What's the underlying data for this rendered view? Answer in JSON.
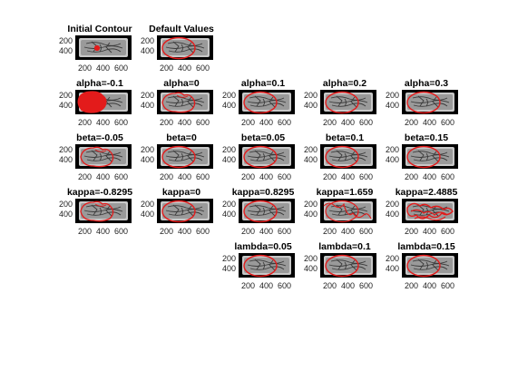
{
  "figure_axis": {
    "yticks": [
      "200",
      "400"
    ],
    "xticks": [
      "200",
      "400",
      "600"
    ],
    "image_background": "#000000",
    "image_foreground": "#c8c8c8",
    "contour_color": "#e31b1b"
  },
  "chart_data": {
    "type": "image-grid",
    "panels": [
      {
        "title": "Initial Contour",
        "row": 0,
        "col": 0,
        "contour": "initial-dot"
      },
      {
        "title": "Default Values",
        "row": 0,
        "col": 1,
        "contour": "ellipse"
      },
      {
        "title": "alpha=-0.1",
        "row": 1,
        "col": 0,
        "contour": "filled-blob"
      },
      {
        "title": "alpha=0",
        "row": 1,
        "col": 1,
        "contour": "wavy"
      },
      {
        "title": "alpha=0.1",
        "row": 1,
        "col": 2,
        "contour": "ellipse"
      },
      {
        "title": "alpha=0.2",
        "row": 1,
        "col": 3,
        "contour": "ellipse"
      },
      {
        "title": "alpha=0.3",
        "row": 1,
        "col": 4,
        "contour": "ellipse"
      },
      {
        "title": "beta=-0.05",
        "row": 2,
        "col": 0,
        "contour": "wavy"
      },
      {
        "title": "beta=0",
        "row": 2,
        "col": 1,
        "contour": "ellipse"
      },
      {
        "title": "beta=0.05",
        "row": 2,
        "col": 2,
        "contour": "ellipse"
      },
      {
        "title": "beta=0.1",
        "row": 2,
        "col": 3,
        "contour": "ellipse"
      },
      {
        "title": "beta=0.15",
        "row": 2,
        "col": 4,
        "contour": "ellipse"
      },
      {
        "title": "kappa=-0.8295",
        "row": 3,
        "col": 0,
        "contour": "wavy"
      },
      {
        "title": "kappa=0",
        "row": 3,
        "col": 1,
        "contour": "ellipse"
      },
      {
        "title": "kappa=0.8295",
        "row": 3,
        "col": 2,
        "contour": "ellipse"
      },
      {
        "title": "kappa=1.659",
        "row": 3,
        "col": 3,
        "contour": "scribble"
      },
      {
        "title": "kappa=2.4885",
        "row": 3,
        "col": 4,
        "contour": "scribble-heavy"
      },
      {
        "title": "lambda=0.05",
        "row": 4,
        "col": 2,
        "contour": "ellipse"
      },
      {
        "title": "lambda=0.1",
        "row": 4,
        "col": 3,
        "contour": "ellipse"
      },
      {
        "title": "lambda=0.15",
        "row": 4,
        "col": 4,
        "contour": "ellipse"
      }
    ]
  }
}
